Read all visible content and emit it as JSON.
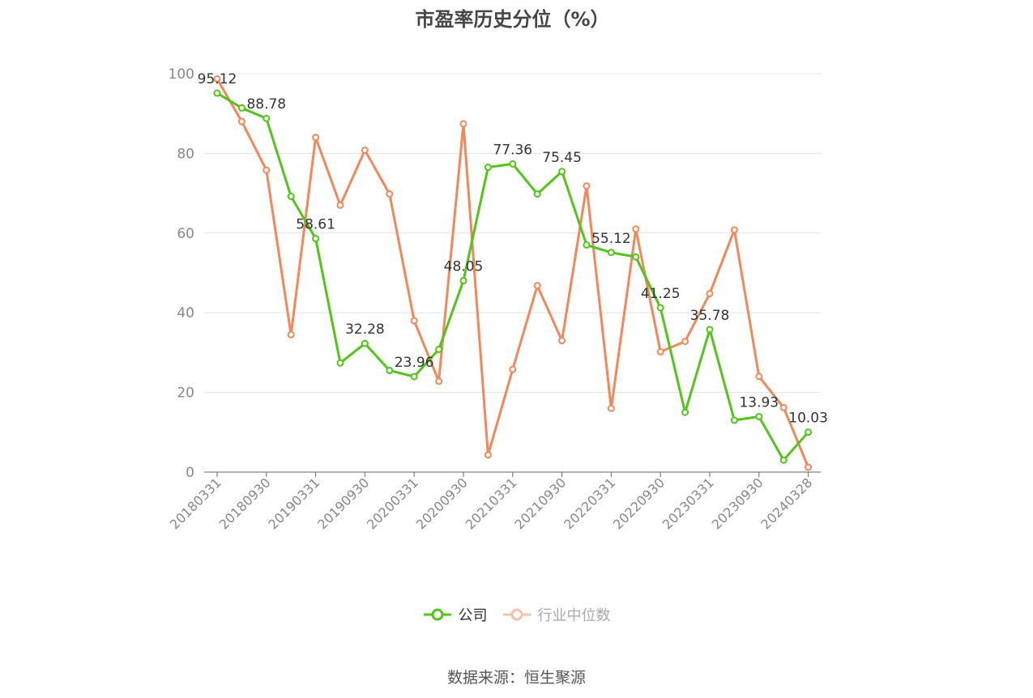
{
  "chart_data": {
    "type": "line",
    "title": "市盈率历史分位（%）",
    "xlabel": "",
    "ylabel": "",
    "ylim": [
      0,
      100
    ],
    "yticks": [
      0,
      20,
      40,
      60,
      80,
      100
    ],
    "x_tick_labels": [
      "20180331",
      "20180930",
      "20190331",
      "20190930",
      "20200331",
      "20200930",
      "20210331",
      "20210930",
      "20220331",
      "20220930",
      "20230331",
      "20230930",
      "20240328"
    ],
    "x_tick_positions": [
      0,
      2,
      4,
      6,
      8,
      10,
      12,
      14,
      16,
      18,
      20,
      22,
      24
    ],
    "series": [
      {
        "name": "公司",
        "color": "#52c41a",
        "values": [
          95.12,
          91.4,
          88.78,
          69.2,
          58.61,
          27.4,
          32.28,
          25.5,
          23.96,
          30.8,
          48.05,
          76.5,
          77.36,
          69.8,
          75.45,
          57.0,
          55.12,
          54.0,
          41.25,
          15.0,
          35.78,
          13.0,
          13.93,
          3.0,
          10.03
        ],
        "labels": {
          "0": "95.12",
          "2": "88.78",
          "4": "58.61",
          "6": "32.28",
          "8": "23.96",
          "10": "48.05",
          "12": "77.36",
          "14": "75.45",
          "16": "55.12",
          "18": "41.25",
          "20": "35.78",
          "22": "13.93",
          "24": "10.03"
        }
      },
      {
        "name": "行业中位数",
        "color": "#f0885a",
        "values": [
          98.7,
          88.0,
          75.8,
          34.5,
          84.0,
          67.0,
          80.8,
          69.8,
          38.0,
          22.8,
          87.4,
          4.3,
          25.8,
          46.8,
          33.0,
          71.8,
          16.0,
          61.0,
          30.2,
          32.8,
          44.8,
          60.8,
          24.0,
          16.2,
          1.2
        ]
      }
    ],
    "grid": true,
    "legend_position": "bottom-center"
  },
  "source_text": "数据来源：恒生聚源"
}
